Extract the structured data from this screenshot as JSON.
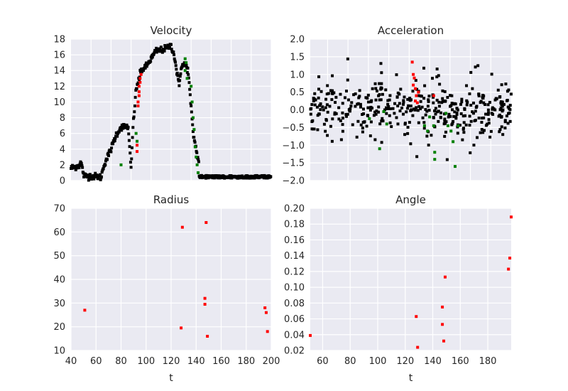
{
  "colors": {
    "panel_bg": "#EAEAF2",
    "grid": "#FFFFFF",
    "text": "#262626",
    "black": "#000000",
    "red": "#FF0000",
    "green": "#008000"
  },
  "chart_data": [
    {
      "type": "scatter",
      "title": "Velocity",
      "xlabel": "",
      "ylabel": "",
      "xlim": [
        0,
        200
      ],
      "ylim": [
        0,
        18
      ],
      "grid": true,
      "yticks": [
        0,
        2,
        4,
        6,
        8,
        10,
        12,
        14,
        16,
        18
      ],
      "xticks": [],
      "gen": "velocity"
    },
    {
      "type": "scatter",
      "title": "Acceleration",
      "xlabel": "",
      "ylabel": "",
      "xlim": [
        0,
        197
      ],
      "ylim": [
        -2.0,
        2.0
      ],
      "grid": true,
      "ytick_labels": [
        "2.0",
        "1.5",
        "1.0",
        "0.5",
        "0.0",
        "−0.5",
        "−1.0",
        "−1.5",
        "−2.0"
      ],
      "yticks": [
        2.0,
        1.5,
        1.0,
        0.5,
        0.0,
        -0.5,
        -1.0,
        -1.5,
        -2.0
      ],
      "xticks": [],
      "gen": "acceleration"
    },
    {
      "type": "scatter",
      "title": "Radius",
      "xlabel": "t",
      "ylabel": "",
      "xlim": [
        40,
        200
      ],
      "ylim": [
        10,
        70
      ],
      "grid": true,
      "xticks": [
        40,
        60,
        80,
        100,
        120,
        140,
        160,
        180,
        200
      ],
      "yticks": [
        10,
        20,
        30,
        40,
        50,
        60,
        70
      ],
      "series": [
        {
          "color": "red",
          "points": [
            [
              51,
              27
            ],
            [
              128,
              19.5
            ],
            [
              129,
              62
            ],
            [
              147,
              29.5
            ],
            [
              147,
              32
            ],
            [
              148,
              64
            ],
            [
              149,
              16
            ],
            [
              195,
              28
            ],
            [
              196,
              26
            ],
            [
              197,
              18
            ]
          ]
        }
      ]
    },
    {
      "type": "scatter",
      "title": "Angle",
      "xlabel": "t",
      "ylabel": "",
      "xlim": [
        51,
        197
      ],
      "ylim": [
        0.02,
        0.2
      ],
      "grid": true,
      "xticks": [
        60,
        80,
        100,
        120,
        140,
        160,
        180
      ],
      "yticks": [
        0.02,
        0.04,
        0.06,
        0.08,
        0.1,
        0.12,
        0.14,
        0.16,
        0.18,
        0.2
      ],
      "ytick_labels": [
        "0.02",
        "0.04",
        "0.06",
        "0.08",
        "0.10",
        "0.12",
        "0.14",
        "0.16",
        "0.18",
        "0.20"
      ],
      "series": [
        {
          "color": "red",
          "points": [
            [
              51,
              0.039
            ],
            [
              128,
              0.063
            ],
            [
              129,
              0.024
            ],
            [
              147,
              0.075
            ],
            [
              147,
              0.053
            ],
            [
              148,
              0.032
            ],
            [
              149,
              0.113
            ],
            [
              195,
              0.123
            ],
            [
              196,
              0.137
            ],
            [
              197,
              0.189
            ]
          ]
        }
      ]
    }
  ]
}
